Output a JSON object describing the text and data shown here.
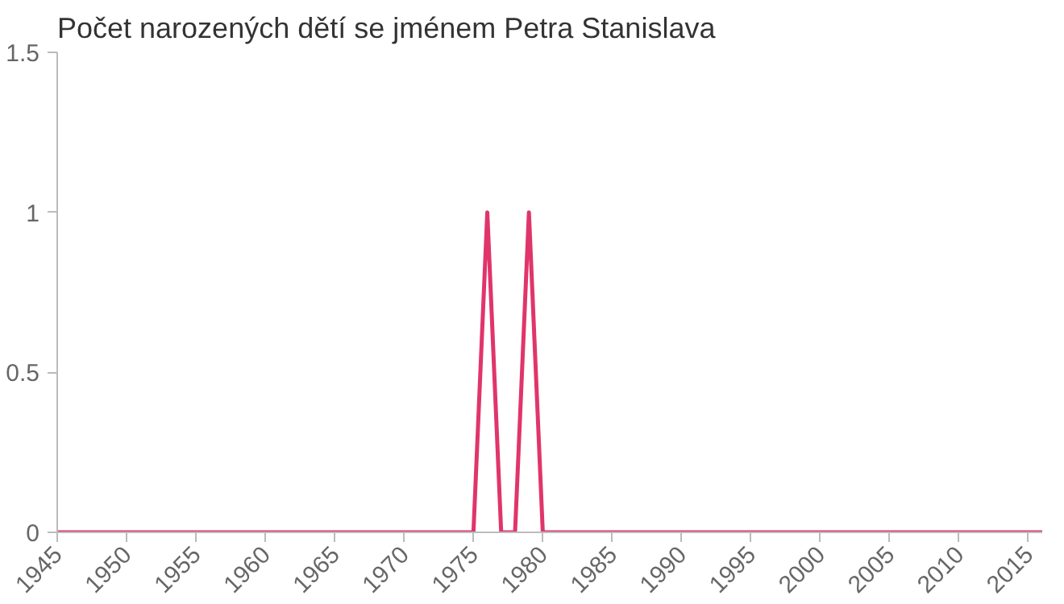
{
  "chart_data": {
    "type": "line",
    "title": "Počet narozených dětí se jménem Petra Stanislava",
    "x": [
      1945,
      1946,
      1947,
      1948,
      1949,
      1950,
      1951,
      1952,
      1953,
      1954,
      1955,
      1956,
      1957,
      1958,
      1959,
      1960,
      1961,
      1962,
      1963,
      1964,
      1965,
      1966,
      1967,
      1968,
      1969,
      1970,
      1971,
      1972,
      1973,
      1974,
      1975,
      1976,
      1977,
      1978,
      1979,
      1980,
      1981,
      1982,
      1983,
      1984,
      1985,
      1986,
      1987,
      1988,
      1989,
      1990,
      1991,
      1992,
      1993,
      1994,
      1995,
      1996,
      1997,
      1998,
      1999,
      2000,
      2001,
      2002,
      2003,
      2004,
      2005,
      2006,
      2007,
      2008,
      2009,
      2010,
      2011,
      2012,
      2013,
      2014,
      2015,
      2016
    ],
    "series": [
      {
        "color": "#e0356b",
        "values": [
          0,
          0,
          0,
          0,
          0,
          0,
          0,
          0,
          0,
          0,
          0,
          0,
          0,
          0,
          0,
          0,
          0,
          0,
          0,
          0,
          0,
          0,
          0,
          0,
          0,
          0,
          0,
          0,
          0,
          0,
          0,
          1,
          0,
          0,
          1,
          0,
          0,
          0,
          0,
          0,
          0,
          0,
          0,
          0,
          0,
          0,
          0,
          0,
          0,
          0,
          0,
          0,
          0,
          0,
          0,
          0,
          0,
          0,
          0,
          0,
          0,
          0,
          0,
          0,
          0,
          0,
          0,
          0,
          0,
          0,
          0,
          0
        ]
      }
    ],
    "xlim": [
      1945,
      2016
    ],
    "xticks": [
      1945,
      1950,
      1955,
      1960,
      1965,
      1970,
      1975,
      1980,
      1985,
      1990,
      1995,
      2000,
      2005,
      2010,
      2015
    ],
    "ylim": [
      0,
      1.5
    ],
    "yticks": [
      0,
      0.5,
      1,
      1.5
    ],
    "grid": false,
    "marker": "none",
    "line_style": "solid"
  }
}
